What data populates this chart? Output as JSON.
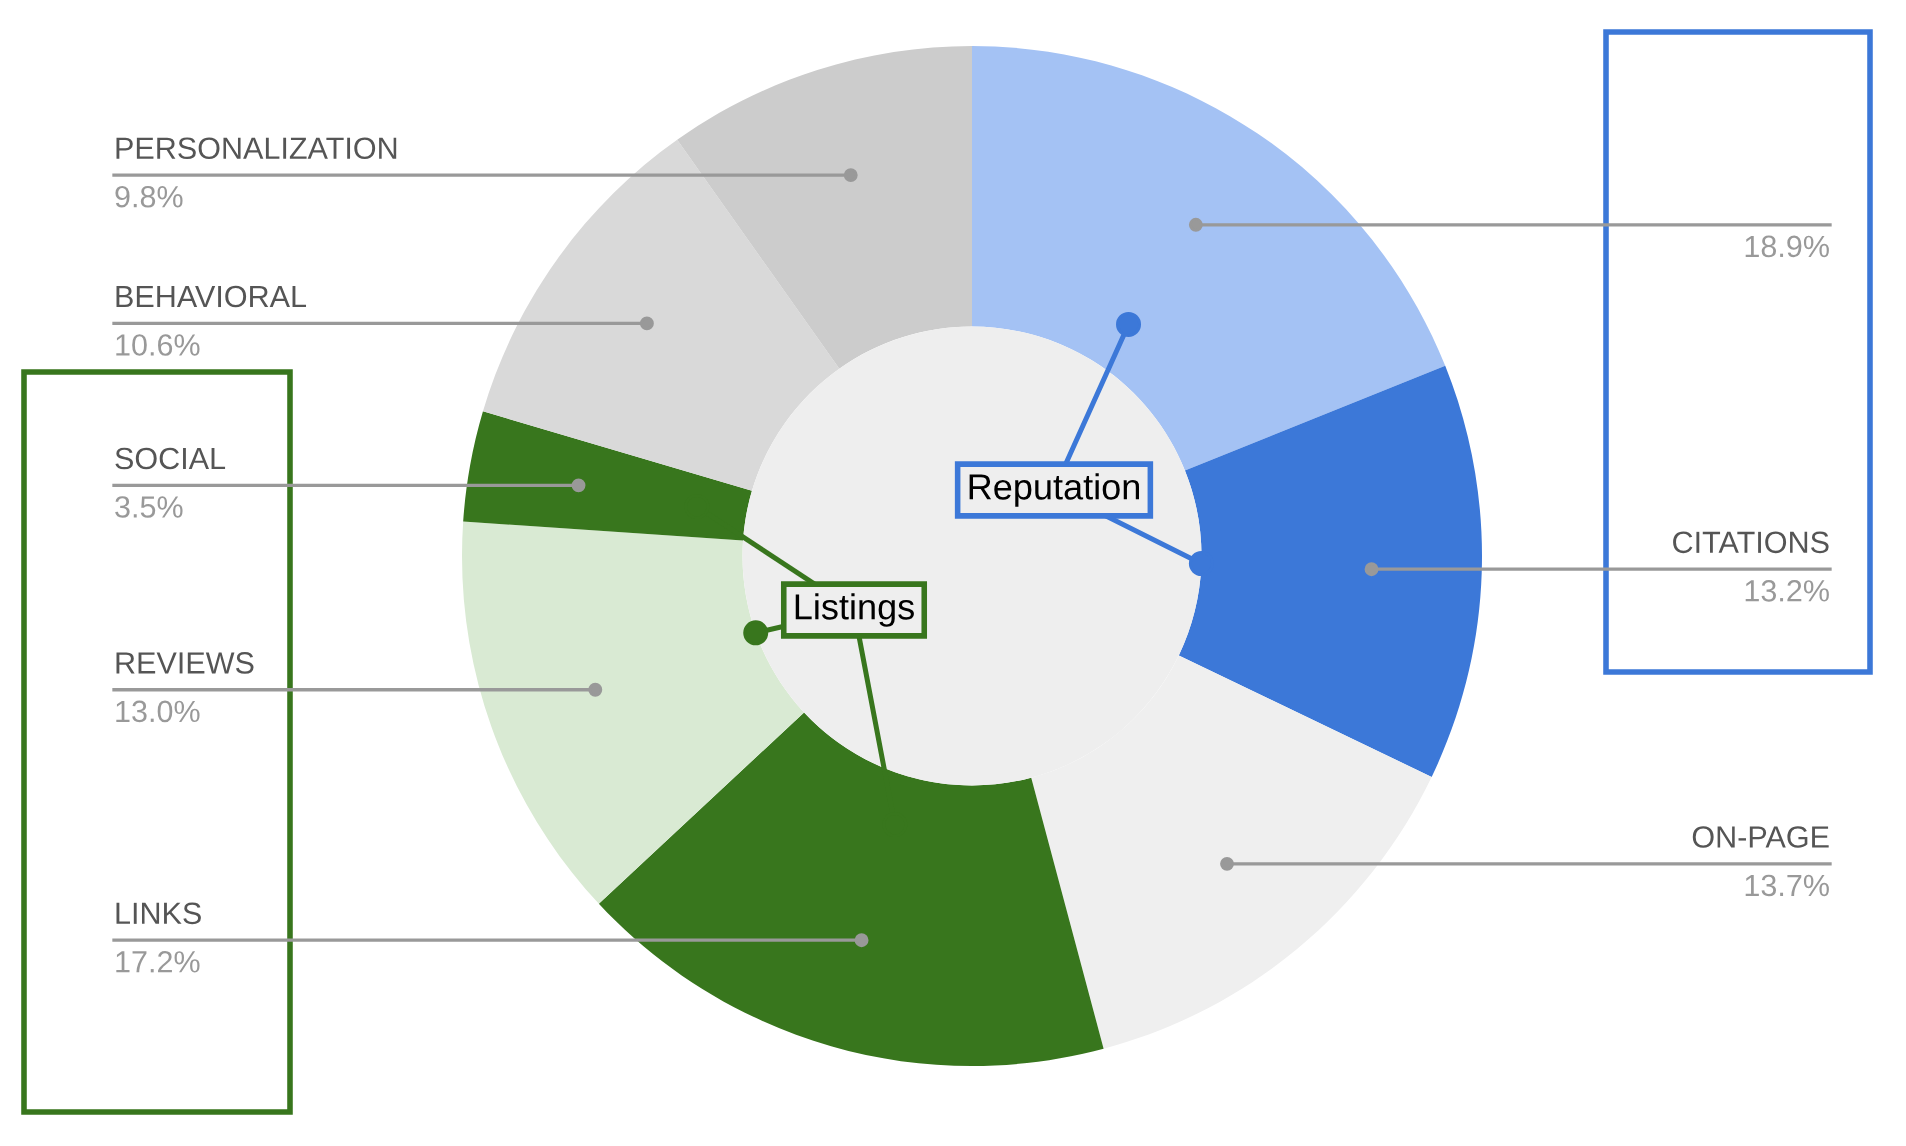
{
  "chart_data": {
    "type": "donut",
    "categories": [
      null,
      "CITATIONS",
      "ON-PAGE",
      "LINKS",
      "REVIEWS",
      "SOCIAL",
      "BEHAVIORAL",
      "PERSONALIZATION"
    ],
    "values": [
      18.9,
      13.2,
      13.7,
      17.2,
      13.0,
      3.5,
      10.6,
      9.8
    ],
    "colors": [
      "#a4c2f4",
      "#3c78d8",
      "#efefef",
      "#38761d",
      "#d9ead3",
      "#38761d",
      "#d9d9d9",
      "#cccccc"
    ],
    "value_labels": [
      "18.9%",
      "13.2%",
      "13.7%",
      "17.2%",
      "13.0%",
      "3.5%",
      "10.6%",
      "9.8%"
    ],
    "annotations": [
      "Reputation",
      "Listings"
    ],
    "legend": false
  }
}
